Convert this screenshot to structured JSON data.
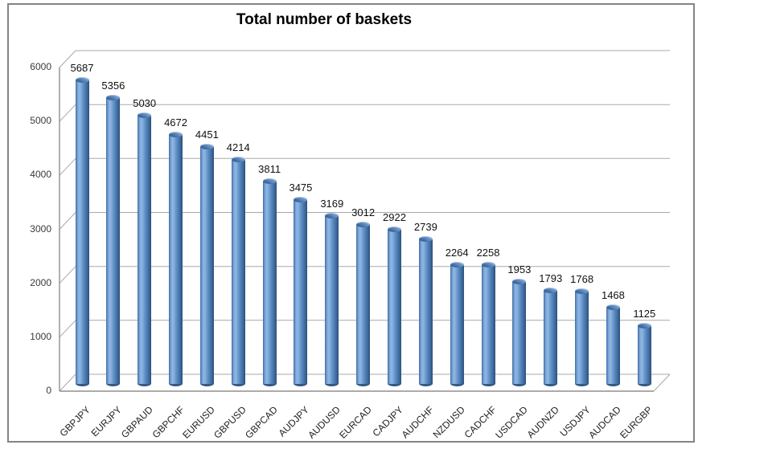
{
  "window": {
    "background": "#ffffff",
    "border_color": "#848484"
  },
  "chart_data": {
    "type": "bar",
    "subtype": "3d-cylinder",
    "title": "Total number of baskets",
    "categories": [
      "GBPJPY",
      "EURJPY",
      "GBPAUD",
      "GBPCHF",
      "EURUSD",
      "GBPUSD",
      "GBPCAD",
      "AUDJPY",
      "AUDUSD",
      "EURCAD",
      "CADJPY",
      "AUDCHF",
      "NZDUSD",
      "CADCHF",
      "USDCAD",
      "AUDNZD",
      "USDJPY",
      "AUDCAD",
      "EURGBP"
    ],
    "values": [
      5687,
      5356,
      5030,
      4672,
      4451,
      4214,
      3811,
      3475,
      3169,
      3012,
      2922,
      2739,
      2264,
      2258,
      1953,
      1793,
      1768,
      1468,
      1125
    ],
    "data_labels_shown": true,
    "xlabel": "",
    "ylabel": "",
    "ylim": [
      0,
      6000
    ],
    "ytick_interval": 1000,
    "yticks": [
      0,
      1000,
      2000,
      3000,
      4000,
      5000,
      6000
    ],
    "grid": true,
    "legend_position": "none",
    "bar_color": "#4f81bd",
    "gridline_color": "#a8a8a8",
    "axis_color": "#8f8f8f",
    "value_label_color": "#111111",
    "tick_label_color": "#3a3a3a",
    "category_label_rotation_deg": -45
  }
}
